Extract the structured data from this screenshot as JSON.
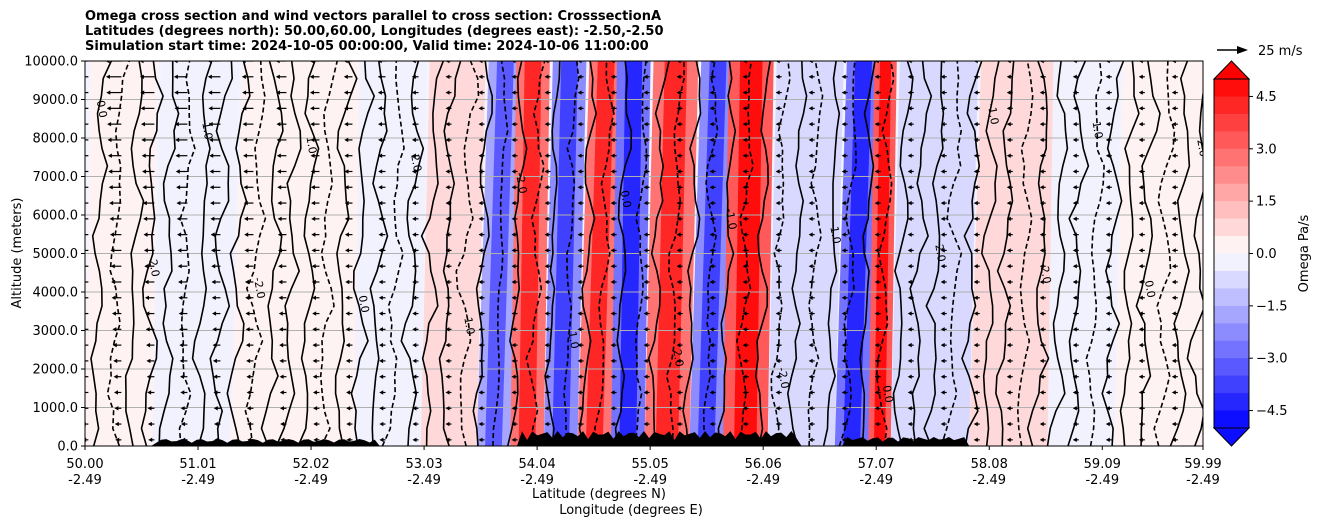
{
  "chart_data": {
    "type": "heatmap",
    "title_lines": [
      "Omega cross section and wind vectors parallel to cross section: CrosssectionA",
      "Latitudes (degrees north): 50.00,60.00, Longitudes (degrees east): -2.50,-2.50",
      "Simulation start time: 2024-10-05 00:00:00, Valid time: 2024-10-06 11:00:00"
    ],
    "ylabel": "Altitude (meters)",
    "xlabel_lines": [
      "Latitude (degrees N)",
      "Longitude (degrees E)"
    ],
    "ylim": [
      0,
      10000
    ],
    "xlim": [
      50.0,
      59.99
    ],
    "y_ticks": [
      "0.0",
      "1000.0",
      "2000.0",
      "3000.0",
      "4000.0",
      "5000.0",
      "6000.0",
      "7000.0",
      "8000.0",
      "9000.0",
      "10000.0"
    ],
    "x_ticks": [
      {
        "lat": "50.00",
        "lon": "-2.49"
      },
      {
        "lat": "51.01",
        "lon": "-2.49"
      },
      {
        "lat": "52.02",
        "lon": "-2.49"
      },
      {
        "lat": "53.03",
        "lon": "-2.49"
      },
      {
        "lat": "54.04",
        "lon": "-2.49"
      },
      {
        "lat": "55.05",
        "lon": "-2.49"
      },
      {
        "lat": "56.06",
        "lon": "-2.49"
      },
      {
        "lat": "57.07",
        "lon": "-2.49"
      },
      {
        "lat": "58.08",
        "lon": "-2.49"
      },
      {
        "lat": "59.09",
        "lon": "-2.49"
      },
      {
        "lat": "59.99",
        "lon": "-2.49"
      }
    ],
    "colorbar": {
      "label": "Omega Pa/s",
      "range": [
        -5.0,
        5.0
      ],
      "ticks": [
        "4.5",
        "3.0",
        "1.5",
        "0.0",
        "−1.5",
        "−3.0",
        "−4.5"
      ],
      "extend": "both",
      "colormap": "bwr"
    },
    "vector_key": {
      "label": "25 m/s",
      "speed_ms": 25
    },
    "contour_labels": [
      "0.0",
      "-1.0",
      "1.0",
      "2.0",
      "-2.0"
    ],
    "omega_bands": [
      {
        "lat_start": 50.0,
        "lat_end": 50.6,
        "omega": 0.3
      },
      {
        "lat_start": 50.6,
        "lat_end": 51.3,
        "omega": -0.3
      },
      {
        "lat_start": 51.3,
        "lat_end": 52.4,
        "omega": 0.4
      },
      {
        "lat_start": 52.4,
        "lat_end": 53.0,
        "omega": -0.5
      },
      {
        "lat_start": 53.0,
        "lat_end": 53.5,
        "omega": 0.6
      },
      {
        "lat_start": 53.5,
        "lat_end": 53.8,
        "omega": -1.8
      },
      {
        "lat_start": 53.8,
        "lat_end": 54.1,
        "omega": 2.5
      },
      {
        "lat_start": 54.1,
        "lat_end": 54.4,
        "omega": -2.4
      },
      {
        "lat_start": 54.4,
        "lat_end": 54.7,
        "omega": 2.8
      },
      {
        "lat_start": 54.7,
        "lat_end": 55.0,
        "omega": -3.0
      },
      {
        "lat_start": 55.0,
        "lat_end": 55.4,
        "omega": 2.6
      },
      {
        "lat_start": 55.4,
        "lat_end": 55.7,
        "omega": -2.2
      },
      {
        "lat_start": 55.7,
        "lat_end": 56.1,
        "omega": 3.0
      },
      {
        "lat_start": 56.1,
        "lat_end": 56.7,
        "omega": -0.8
      },
      {
        "lat_start": 56.7,
        "lat_end": 57.0,
        "omega": -2.6
      },
      {
        "lat_start": 57.0,
        "lat_end": 57.2,
        "omega": 3.4
      },
      {
        "lat_start": 57.2,
        "lat_end": 57.9,
        "omega": -0.6
      },
      {
        "lat_start": 57.9,
        "lat_end": 58.6,
        "omega": 0.5
      },
      {
        "lat_start": 58.6,
        "lat_end": 59.2,
        "omega": -0.4
      },
      {
        "lat_start": 59.2,
        "lat_end": 59.99,
        "omega": 0.4
      }
    ]
  }
}
